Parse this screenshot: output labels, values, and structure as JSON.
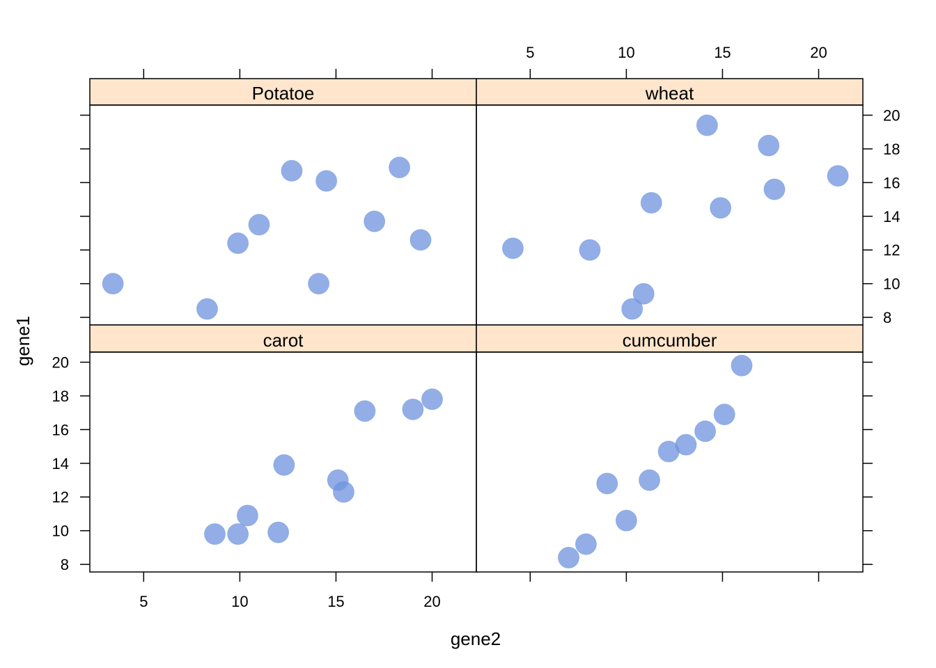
{
  "chart_data": {
    "type": "scatter",
    "xlabel": "gene2",
    "ylabel": "gene1",
    "xlim": [
      2.2,
      22.3
    ],
    "ylim": [
      7.55,
      20.6
    ],
    "xticks": [
      5,
      10,
      15,
      20
    ],
    "yticks": [
      8,
      10,
      12,
      14,
      16,
      18,
      20
    ],
    "point_color": "#6f93dd",
    "strip_color": "#ffe5cc",
    "panels": [
      {
        "name": "Potatoe",
        "x": [
          3.4,
          8.3,
          9.9,
          11.0,
          12.7,
          14.5,
          14.1,
          17.0,
          18.3,
          19.4
        ],
        "y": [
          10.0,
          8.5,
          12.4,
          13.5,
          16.7,
          16.1,
          10.0,
          13.7,
          16.9,
          12.6
        ]
      },
      {
        "name": "wheat",
        "x": [
          4.1,
          8.1,
          10.3,
          10.9,
          11.3,
          14.2,
          14.9,
          17.4,
          17.7,
          21.0
        ],
        "y": [
          12.1,
          12.0,
          8.5,
          9.4,
          14.8,
          19.4,
          14.5,
          18.2,
          15.6,
          16.4
        ]
      },
      {
        "name": "carot",
        "x": [
          8.7,
          9.9,
          10.4,
          12.0,
          12.3,
          15.1,
          15.4,
          16.5,
          19.0,
          20.0
        ],
        "y": [
          9.8,
          9.8,
          10.9,
          9.9,
          13.9,
          13.0,
          12.3,
          17.1,
          17.2,
          17.8
        ]
      },
      {
        "name": "cumcumber",
        "x": [
          7.0,
          7.9,
          9.0,
          10.0,
          11.2,
          12.2,
          13.1,
          14.1,
          15.1,
          16.0
        ],
        "y": [
          8.4,
          9.2,
          12.8,
          10.6,
          13.0,
          14.7,
          15.1,
          15.9,
          16.9,
          19.8
        ]
      }
    ]
  }
}
